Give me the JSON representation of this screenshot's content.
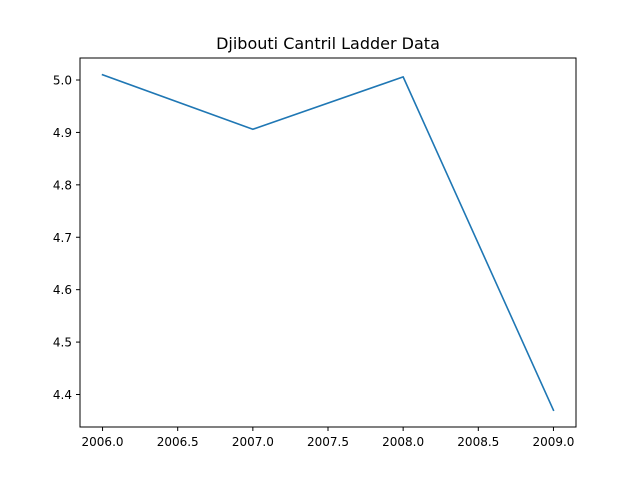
{
  "chart_data": {
    "type": "line",
    "title": "Djibouti Cantril Ladder Data",
    "xlabel": "",
    "ylabel": "",
    "x": [
      2006,
      2007,
      2008,
      2009
    ],
    "series": [
      {
        "values": [
          5.01,
          4.906,
          5.006,
          4.37
        ]
      }
    ],
    "xlim": [
      2005.85,
      2009.15
    ],
    "ylim": [
      4.338,
      5.042
    ],
    "xticks": [
      "2006.0",
      "2006.5",
      "2007.0",
      "2007.5",
      "2008.0",
      "2008.5",
      "2009.0"
    ],
    "yticks": [
      "4.4",
      "4.5",
      "4.6",
      "4.7",
      "4.8",
      "4.9",
      "5.0"
    ],
    "grid": false,
    "legend": "none",
    "colors": {
      "series": "#1f77b4",
      "axes": "#000000",
      "background": "#ffffff"
    }
  }
}
